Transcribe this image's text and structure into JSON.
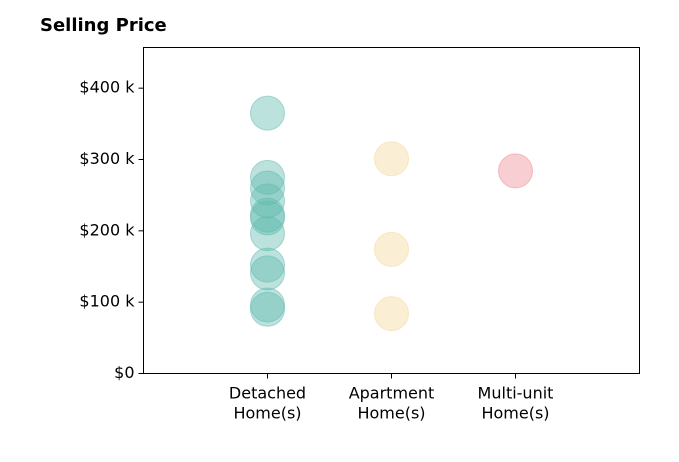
{
  "chart_data": {
    "type": "scatter",
    "title": "Selling Price",
    "xlabel": "",
    "ylabel": "",
    "grid": false,
    "categories": [
      [
        "Detached",
        "Home(s)"
      ],
      [
        "Apartment",
        "Home(s)"
      ],
      [
        "Multi-unit",
        "Home(s)"
      ]
    ],
    "xlim": [
      0,
      4
    ],
    "ylim": [
      0,
      457
    ],
    "yticks": [
      0,
      100,
      200,
      300,
      400
    ],
    "ytick_labels": [
      "$0",
      "$100 k",
      "$200 k",
      "$300 k",
      "$400 k"
    ],
    "series": [
      {
        "category": "Detached Home(s)",
        "color": "#5fb9ae",
        "values": [
          365,
          275,
          260,
          242,
          222,
          218,
          196,
          152,
          141,
          96,
          90
        ]
      },
      {
        "category": "Apartment Home(s)",
        "color": "#f2d89c",
        "values": [
          301,
          174,
          84
        ]
      },
      {
        "category": "Multi-unit Home(s)",
        "color": "#ef8a93",
        "values": [
          284
        ]
      }
    ]
  }
}
